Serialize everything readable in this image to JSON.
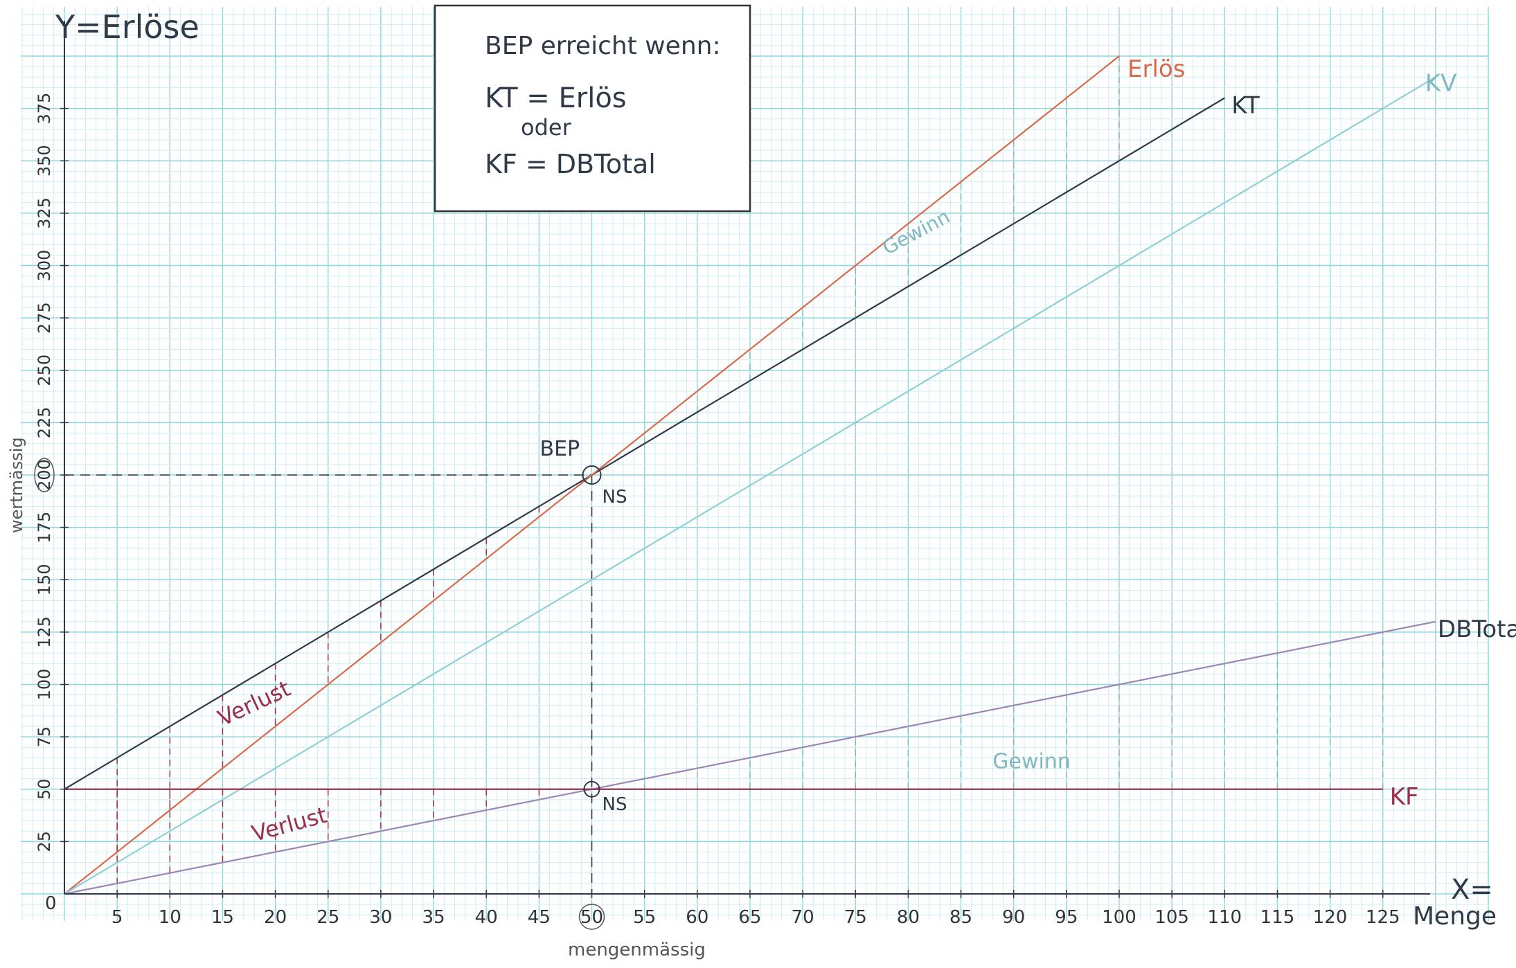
{
  "chart_data": {
    "type": "line",
    "title": "",
    "y_title": "Y=Erlöse",
    "x_title_top": "X=",
    "x_title_bottom": "Menge",
    "y_side_label": "wertmässig",
    "x_side_label": "mengenmässig",
    "xlim": [
      0,
      130
    ],
    "ylim": [
      0,
      400
    ],
    "x_ticks": [
      "5",
      "10",
      "15",
      "20",
      "25",
      "30",
      "35",
      "40",
      "45",
      "50",
      "55",
      "60",
      "65",
      "70",
      "75",
      "80",
      "85",
      "90",
      "95",
      "100",
      "105",
      "110",
      "115",
      "120",
      "125"
    ],
    "y_ticks": [
      "25",
      "50",
      "75",
      "100",
      "125",
      "150",
      "175",
      "200",
      "225",
      "250",
      "275",
      "300",
      "325",
      "350",
      "375"
    ],
    "origin_label": "0",
    "grid": true,
    "colors": {
      "grid_minor": "#cdeef2",
      "grid_major": "#8ed6dd",
      "kt": "#2f3a48",
      "erloes": "#d86a4a",
      "kv": "#8fcfd6",
      "db": "#9a87b8",
      "kf": "#9a2f4d",
      "annotation_teal": "#7fb8bf",
      "verlust": "#9a2f4d"
    },
    "series": [
      {
        "name": "KT",
        "x": [
          0,
          110
        ],
        "y": [
          50,
          380
        ]
      },
      {
        "name": "Erlös",
        "x": [
          0,
          100
        ],
        "y": [
          0,
          400
        ]
      },
      {
        "name": "KV",
        "x": [
          0,
          130
        ],
        "y": [
          0,
          390
        ]
      },
      {
        "name": "DBTotal",
        "x": [
          0,
          130
        ],
        "y": [
          0,
          130
        ]
      },
      {
        "name": "KF",
        "x": [
          0,
          125
        ],
        "y": [
          50,
          50
        ]
      }
    ],
    "annotations": [
      {
        "text": "BEP",
        "x": 50,
        "y": 200
      },
      {
        "text": "NS",
        "x": 50,
        "y": 200
      },
      {
        "text": "NS",
        "x": 50,
        "y": 50
      },
      {
        "text": "Gewinn",
        "x": 78,
        "y": 305
      },
      {
        "text": "Gewinn",
        "x": 88,
        "y": 60
      },
      {
        "text": "Verlust",
        "x": 15,
        "y": 80
      },
      {
        "text": "Verlust",
        "x": 18,
        "y": 25
      }
    ],
    "highlighted_x": "50",
    "highlighted_y": "200"
  },
  "info_box": {
    "line1": "BEP erreicht wenn:",
    "line2": "KT = Erlös",
    "line3": "oder",
    "line4": "KF = DBTotal"
  }
}
